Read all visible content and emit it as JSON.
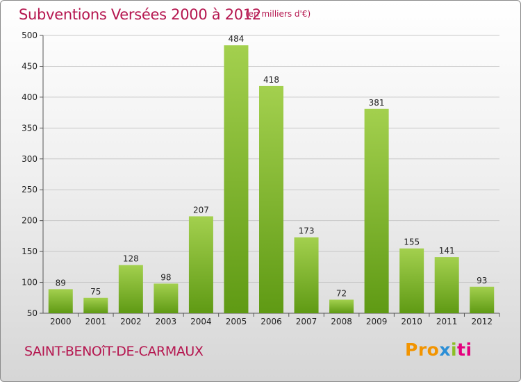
{
  "title": "Subventions Versées 2000 à 2012",
  "unit_note": "(en milliers d'€)",
  "commune": "SAINT-BENOîT-DE-CARMAUX",
  "logo": {
    "parts": [
      "Pro",
      "x",
      "i",
      "ti"
    ],
    "colors": [
      "#f29400",
      "#2c8fd6",
      "#8cbf26",
      "#e5007e"
    ]
  },
  "colors": {
    "title": "#b5164f",
    "bar_light": "#a3d04e",
    "bar_dark": "#5f9a14",
    "grid": "#c8c8c8"
  },
  "chart_data": {
    "type": "bar",
    "categories": [
      "2000",
      "2001",
      "2002",
      "2003",
      "2004",
      "2005",
      "2006",
      "2007",
      "2008",
      "2009",
      "2010",
      "2011",
      "2012"
    ],
    "values": [
      89,
      75,
      128,
      98,
      207,
      484,
      418,
      173,
      72,
      381,
      155,
      141,
      93
    ],
    "title": "Subventions Versées 2000 à 2012",
    "xlabel": "",
    "ylabel": "",
    "ylim": [
      50,
      500
    ],
    "yticks": [
      50,
      100,
      150,
      200,
      250,
      300,
      350,
      400,
      450,
      500
    ],
    "grid": true,
    "legend": "none"
  }
}
